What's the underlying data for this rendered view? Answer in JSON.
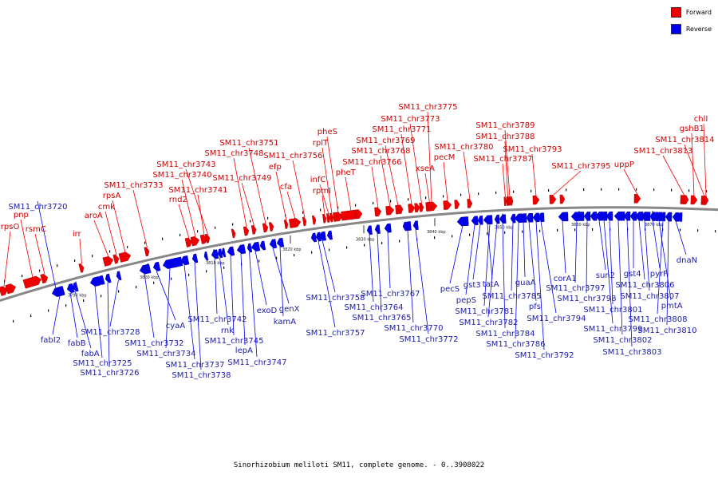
{
  "caption": "Sinorhizobium meliloti SM11, complete genome. - 0..3908022",
  "legend": [
    {
      "label": "Forward",
      "color": "#ee0000"
    },
    {
      "label": "Reverse",
      "color": "#0000ee"
    }
  ],
  "colors": {
    "forward": "#ee0000",
    "reverse": "#0000ee",
    "backbone": "#888888"
  },
  "ticks": [
    "3790 kbp",
    "3800 kbp",
    "3810 kbp",
    "3820 kbp",
    "3830 kbp",
    "3840 kbp",
    "3850 kbp",
    "3860 kbp",
    "3870 kbp"
  ],
  "forward_genes": [
    "rpsO",
    "pnp",
    "rsmC",
    "irr",
    "aroA",
    "cmk",
    "rpsA",
    "SM11_chr3733",
    "rnd2",
    "SM11_chr3740",
    "SM11_chr3741",
    "SM11_chr3743",
    "SM11_chr3748",
    "SM11_chr3749",
    "SM11_chr3751",
    "efp",
    "cfa",
    "SM11_chr3756",
    "rpmI",
    "infC",
    "rplT",
    "pheS",
    "pheT",
    "SM11_chr3766",
    "SM11_chr3768",
    "SM11_chr3769",
    "SM11_chr3771",
    "SM11_chr3773",
    "SM11_chr3775",
    "xseA",
    "pecM",
    "SM11_chr3780",
    "SM11_chr3787",
    "SM11_chr3788",
    "SM11_chr3789",
    "SM11_chr3793",
    "SM11_chr3795",
    "uppP",
    "SM11_chr3813",
    "gshB1",
    "SM11_chr3814",
    "chlI"
  ],
  "reverse_genes": [
    "SM11_chr3720",
    "fabI2",
    "fabB",
    "fabA",
    "SM11_chr3725",
    "SM11_chr3726",
    "SM11_chr3728",
    "SM11_chr3732",
    "cyaA",
    "SM11_chr3734",
    "SM11_chr3737",
    "SM11_chr3738",
    "SM11_chr3742",
    "rnk",
    "SM11_chr3745",
    "lepA",
    "SM11_chr3747",
    "exoD",
    "genX",
    "kamA",
    "SM11_chr3757",
    "SM11_chr3758",
    "SM11_chr3764",
    "SM11_chr3765",
    "SM11_chr3767",
    "SM11_chr3770",
    "SM11_chr3772",
    "pecS",
    "pepS",
    "gst3",
    "tatA",
    "SM11_chr3781",
    "SM11_chr3782",
    "SM11_chr3784",
    "SM11_chr3785",
    "SM11_chr3786",
    "guaA",
    "pfs",
    "SM11_chr3792",
    "SM11_chr3794",
    "corA1",
    "SM11_chr3797",
    "SM11_chr3798",
    "sun2",
    "SM11_chr3799",
    "SM11_chr3801",
    "SM11_chr3802",
    "SM11_chr3803",
    "gst4",
    "SM11_chr3806",
    "SM11_chr3807",
    "pyrF",
    "pmtA",
    "SM11_chr3808",
    "SM11_chr3810",
    "dnaN"
  ]
}
